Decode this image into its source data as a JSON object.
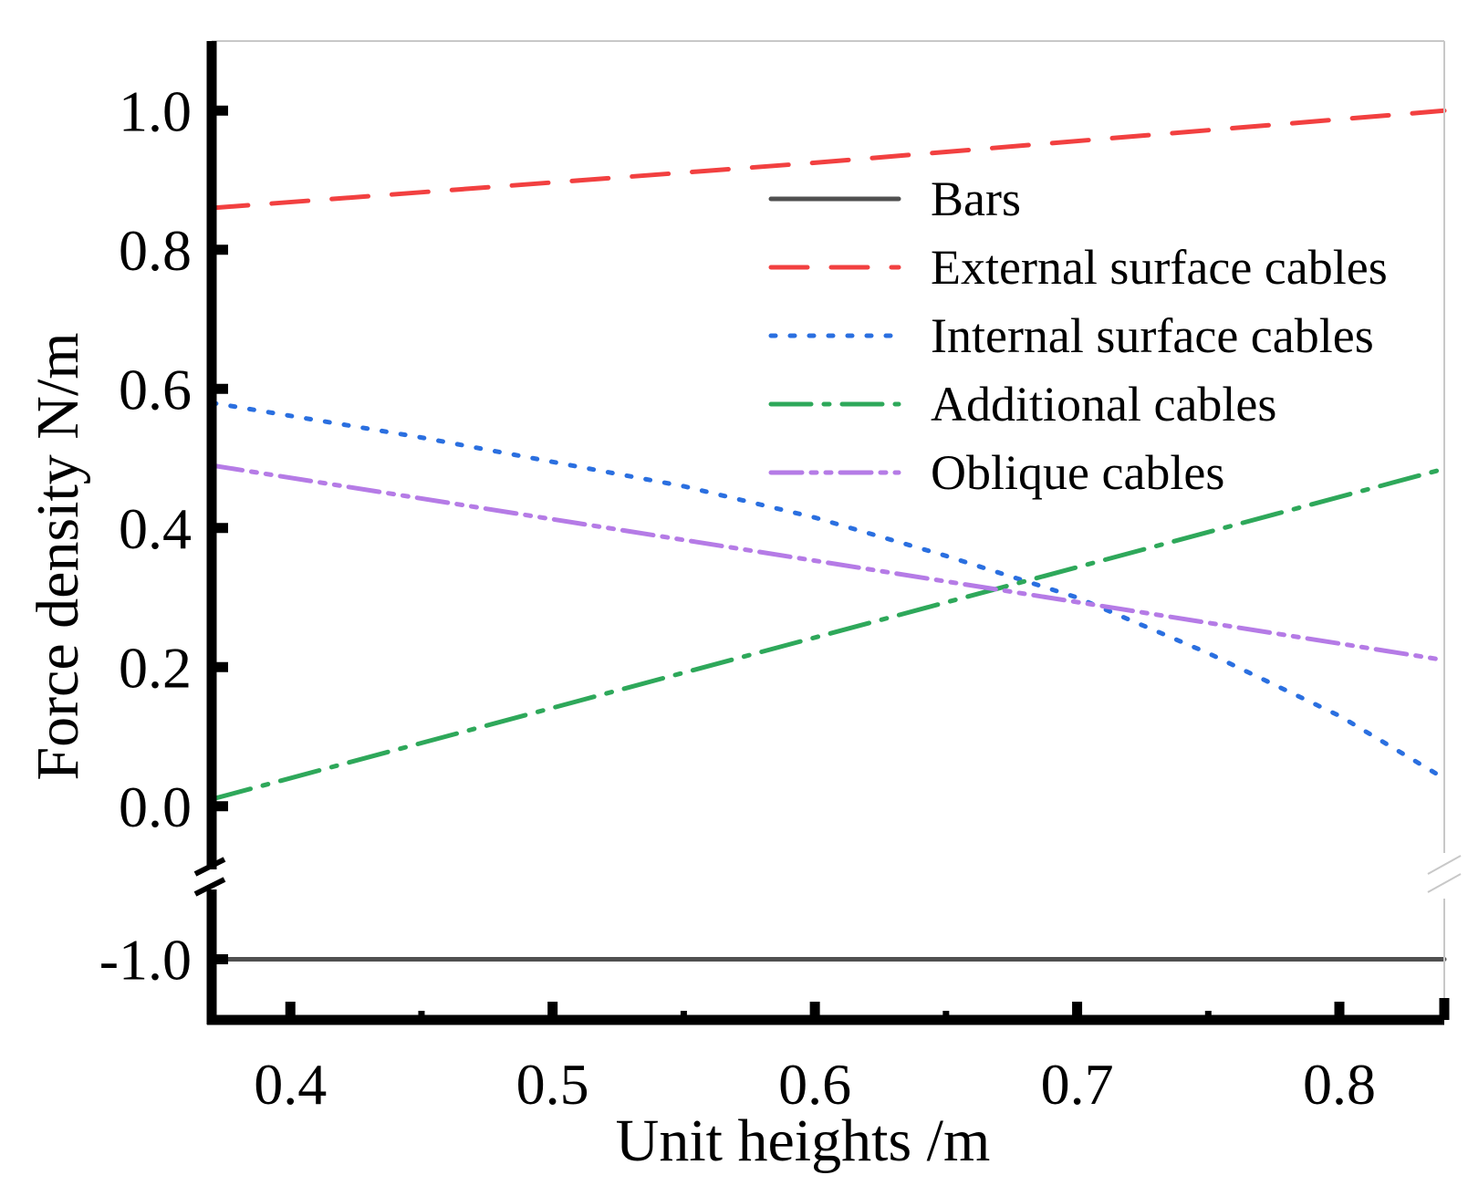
{
  "chart_data": {
    "type": "line",
    "title": "",
    "xlabel": "Unit heights /m",
    "ylabel": "Force density N/m",
    "xlim": [
      0.37,
      0.84
    ],
    "ylim_upper": [
      -0.1,
      1.1
    ],
    "ylim_lower": [
      -1.1,
      -0.9
    ],
    "y_axis_break": true,
    "grid": false,
    "legend_position": "top-right",
    "x_ticks": [
      0.4,
      0.5,
      0.6,
      0.7,
      0.8
    ],
    "x_tick_labels": [
      "0.4",
      "0.5",
      "0.6",
      "0.7",
      "0.8"
    ],
    "y_ticks": [
      -1.0,
      0.0,
      0.2,
      0.4,
      0.6,
      0.8,
      1.0
    ],
    "y_tick_labels": [
      "-1.0",
      "0.0",
      "0.2",
      "0.4",
      "0.6",
      "0.8",
      "1.0"
    ],
    "series": [
      {
        "name": "Bars",
        "color": "#505050",
        "dash": "solid",
        "x": [
          0.37,
          0.84
        ],
        "y": [
          -1.0,
          -1.0
        ]
      },
      {
        "name": "External surface cables",
        "color": "#f24040",
        "dash": "dash",
        "x": [
          0.37,
          0.6,
          0.84
        ],
        "y": [
          0.86,
          0.925,
          1.0
        ]
      },
      {
        "name": "Internal surface cables",
        "color": "#2a6fe0",
        "dash": "dot",
        "x": [
          0.37,
          0.45,
          0.55,
          0.6,
          0.65,
          0.7,
          0.75,
          0.8,
          0.84
        ],
        "y": [
          0.58,
          0.53,
          0.46,
          0.415,
          0.36,
          0.3,
          0.22,
          0.13,
          0.04
        ]
      },
      {
        "name": "Additional cables",
        "color": "#2ea85a",
        "dash": "dashdot",
        "x": [
          0.37,
          0.84
        ],
        "y": [
          0.01,
          0.485
        ]
      },
      {
        "name": "Oblique cables",
        "color": "#b57be6",
        "dash": "dashdotdot",
        "x": [
          0.37,
          0.84
        ],
        "y": [
          0.49,
          0.21
        ]
      }
    ]
  }
}
